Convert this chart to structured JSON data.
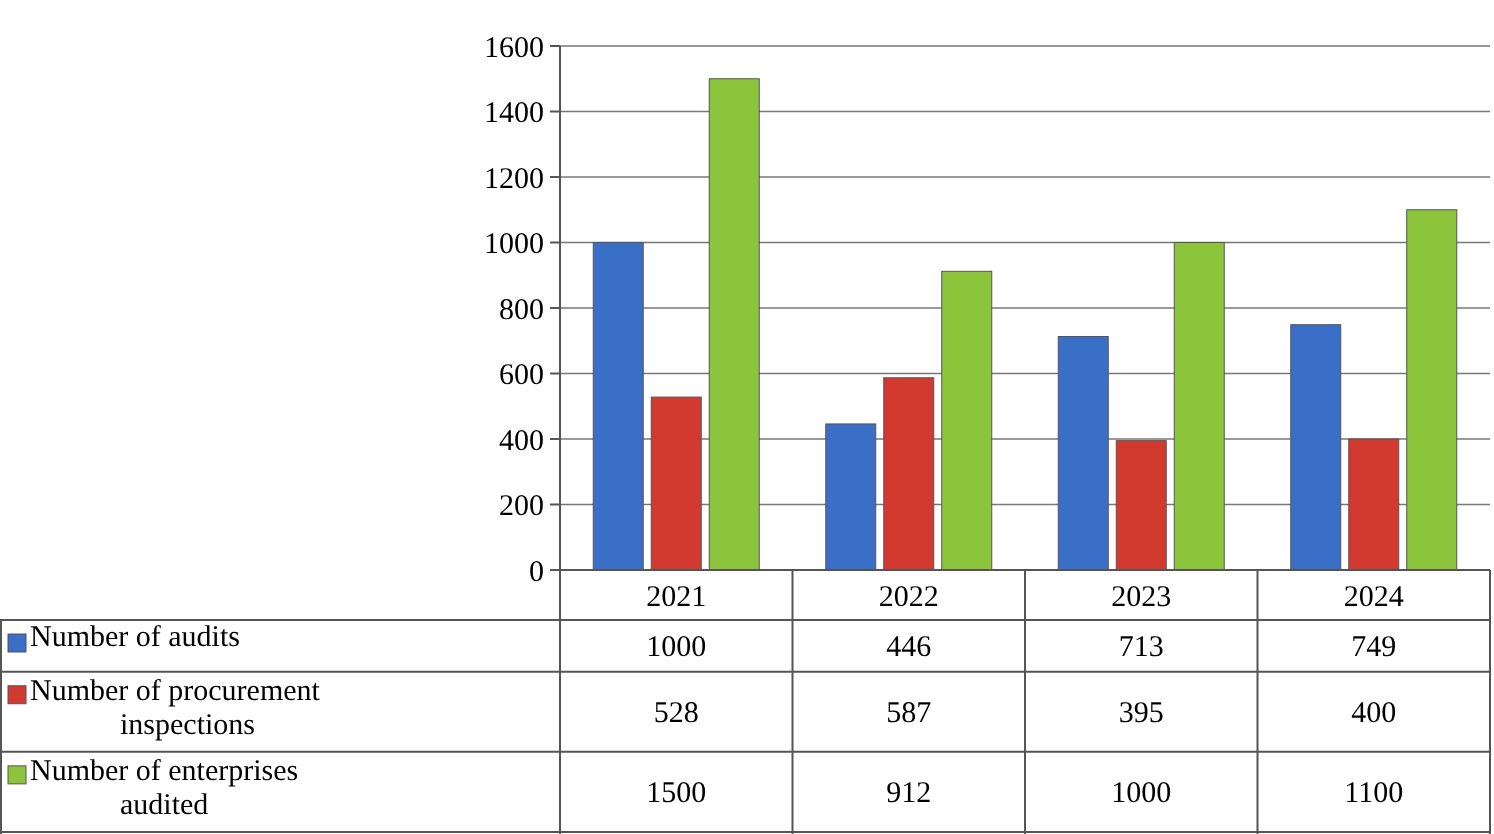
{
  "chart_data": {
    "type": "bar",
    "categories": [
      "2021",
      "2022",
      "2023",
      "2024"
    ],
    "series": [
      {
        "name": "Number of audits",
        "color": "#3a6fc8",
        "values": [
          1000,
          446,
          713,
          749
        ]
      },
      {
        "name": "Number of procurement inspections",
        "color": "#d23a30",
        "values": [
          528,
          587,
          395,
          400
        ]
      },
      {
        "name": "Number of enterprises audited",
        "color": "#8cc43c",
        "values": [
          1500,
          912,
          1000,
          1100
        ]
      }
    ],
    "ylim": [
      0,
      1600
    ],
    "yticks": [
      0,
      200,
      400,
      600,
      800,
      1000,
      1200,
      1400,
      1600
    ],
    "grid": "y",
    "legend": "bottom",
    "data_labels": true
  }
}
